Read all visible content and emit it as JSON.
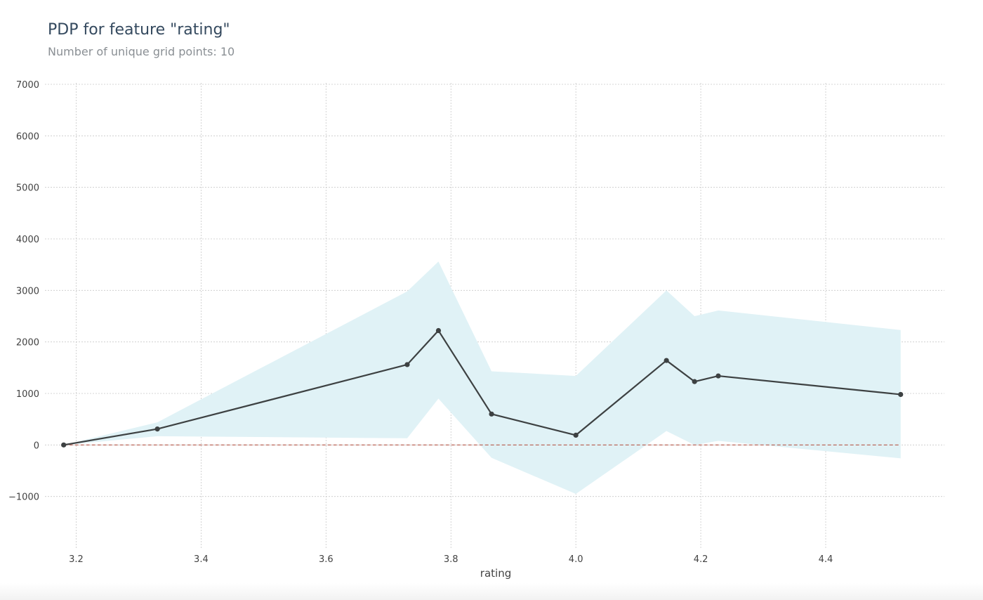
{
  "chart_data": {
    "type": "line",
    "title": "PDP for feature \"rating\"",
    "subtitle": "Number of unique grid points: 10",
    "xlabel": "rating",
    "ylabel": "",
    "xlim": [
      3.15,
      4.59
    ],
    "ylim": [
      -2000,
      7000
    ],
    "x_ticks": [
      3.2,
      3.4,
      3.6,
      3.8,
      4.0,
      4.2,
      4.4
    ],
    "x_tick_labels": [
      "3.2",
      "3.4",
      "3.6",
      "3.8",
      "4.0",
      "4.2",
      "4.4"
    ],
    "y_ticks": [
      -1000,
      0,
      1000,
      2000,
      3000,
      4000,
      5000,
      6000,
      7000
    ],
    "y_tick_labels": [
      "−1000",
      "0",
      "1000",
      "2000",
      "3000",
      "4000",
      "5000",
      "6000",
      "7000"
    ],
    "grid": true,
    "series": [
      {
        "x": [
          3.18,
          3.33,
          3.73,
          3.78,
          3.865,
          4.0,
          4.145,
          4.19,
          4.228,
          4.52
        ],
        "values": [
          0,
          310,
          1560,
          2220,
          600,
          190,
          1640,
          1230,
          1340,
          980
        ],
        "lower": [
          0,
          170,
          130,
          900,
          -250,
          -950,
          270,
          0,
          80,
          -260
        ],
        "upper": [
          0,
          440,
          2980,
          3560,
          1430,
          1340,
          3000,
          2500,
          2610,
          2230
        ]
      }
    ],
    "reference_line": 0,
    "colors": {
      "line": "#3d4142",
      "band": "#e0f2f6",
      "grid": "#c8c8c8",
      "zero_line": "#b5584a",
      "axis_text": "#424242"
    }
  }
}
